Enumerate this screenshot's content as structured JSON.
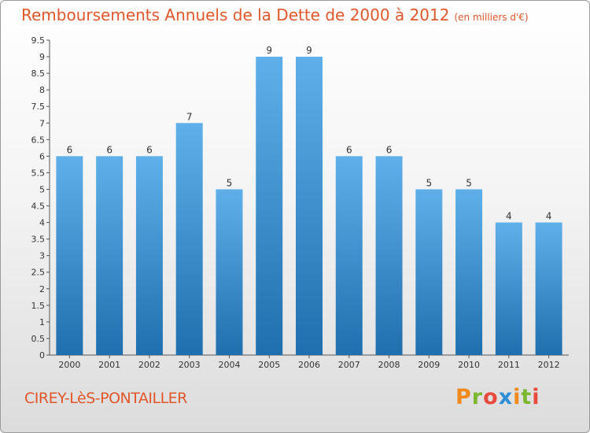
{
  "header": {
    "title": "Remboursements Annuels de la Dette de 2000 à 2012",
    "unit": "(en milliers d'€)"
  },
  "footer": {
    "commune": "CIREY-LèS-PONTAILLER",
    "logo": "Proxiti",
    "logo_colors": [
      "#f08a1d",
      "#7cb82f",
      "#e84b3c",
      "#2e8fd6",
      "#f08a1d",
      "#7cb82f",
      "#e84b3c"
    ]
  },
  "colors": {
    "bar_top": "#5fb0ea",
    "bar_bottom": "#1f6fae",
    "title": "#e0572a",
    "axis_text": "#333333"
  },
  "chart_data": {
    "type": "bar",
    "categories": [
      "2000",
      "2001",
      "2002",
      "2003",
      "2004",
      "2005",
      "2006",
      "2007",
      "2008",
      "2009",
      "2010",
      "2011",
      "2012"
    ],
    "values": [
      6,
      6,
      6,
      7,
      5,
      9,
      9,
      6,
      6,
      5,
      5,
      4,
      4
    ],
    "data_labels": [
      "6",
      "6",
      "6",
      "7",
      "5",
      "9",
      "9",
      "6",
      "6",
      "5",
      "5",
      "4",
      "4"
    ],
    "ylim": [
      0,
      9.5
    ],
    "yticks": [
      "0",
      "0.5",
      "1",
      "1.5",
      "2",
      "2.5",
      "3",
      "3.5",
      "4",
      "4.5",
      "5",
      "5.5",
      "6",
      "6.5",
      "7",
      "7.5",
      "8",
      "8.5",
      "9",
      "9.5"
    ],
    "grid": false,
    "title": "Remboursements Annuels de la Dette de 2000 à 2012",
    "xlabel": "",
    "ylabel": ""
  }
}
